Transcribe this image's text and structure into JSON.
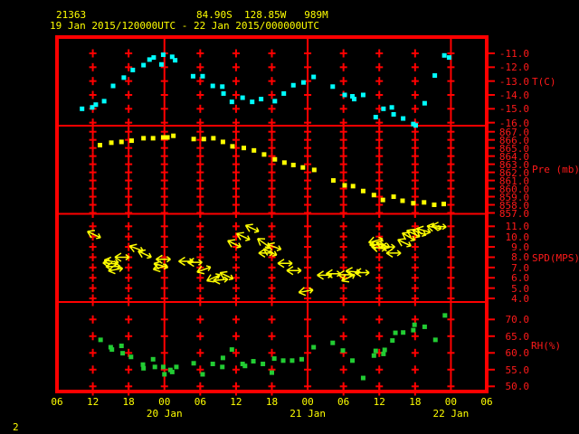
{
  "header": {
    "station_id": "21363",
    "coords_line": "84.90S  128.85W   989M",
    "time_range": "19 Jan 2015/120000UTC - 22 Jan 2015/000000UTC"
  },
  "footer": {
    "corner_label": "2"
  },
  "colors": {
    "background": "#000000",
    "grid": "#ff0000",
    "header_text": "#ffff00",
    "axis_label_text": "#ff1a1a",
    "time_axis_text": "#ffff00",
    "temperature": "#00ffff",
    "pressure": "#ffff00",
    "wind": "#ffff00",
    "humidity": "#22cc33"
  },
  "x_axis": {
    "tick_labels": [
      "06",
      "12",
      "18",
      "00",
      "06",
      "12",
      "18",
      "00",
      "06",
      "12",
      "18",
      "00",
      "06"
    ],
    "tick_hours": [
      0,
      6,
      12,
      18,
      24,
      30,
      36,
      42,
      48,
      54,
      60,
      66,
      72
    ],
    "day_labels": [
      {
        "label": "20 Jan",
        "hour": 18
      },
      {
        "label": "21 Jan",
        "hour": 42
      },
      {
        "label": "22 Jan",
        "hour": 66
      }
    ],
    "hours_span": 72
  },
  "chart_data": [
    {
      "type": "scatter",
      "name": "temperature",
      "ylabel": "T(C)",
      "yticks": [
        "-11.0",
        "-12.0",
        "-13.0",
        "-14.0",
        "-15.0",
        "-16.0"
      ],
      "ylim": [
        -16.2,
        -10.8
      ],
      "points": [
        [
          4.2,
          -15.0
        ],
        [
          5.9,
          -14.9
        ],
        [
          6.5,
          -14.7
        ],
        [
          7.9,
          -14.45
        ],
        [
          9.4,
          -13.35
        ],
        [
          11.2,
          -12.75
        ],
        [
          12.7,
          -12.2
        ],
        [
          14.5,
          -11.85
        ],
        [
          15.5,
          -11.45
        ],
        [
          16.2,
          -11.3
        ],
        [
          17.5,
          -11.8
        ],
        [
          17.8,
          -11.1
        ],
        [
          19.3,
          -11.25
        ],
        [
          19.8,
          -11.5
        ],
        [
          22.8,
          -12.65
        ],
        [
          24.4,
          -12.65
        ],
        [
          26.1,
          -13.35
        ],
        [
          27.7,
          -13.4
        ],
        [
          27.9,
          -13.9
        ],
        [
          29.3,
          -14.5
        ],
        [
          31.1,
          -14.2
        ],
        [
          32.7,
          -14.5
        ],
        [
          34.2,
          -14.3
        ],
        [
          36.5,
          -14.45
        ],
        [
          38.0,
          -13.9
        ],
        [
          39.6,
          -13.3
        ],
        [
          41.3,
          -13.1
        ],
        [
          43.0,
          -12.7
        ],
        [
          46.2,
          -13.4
        ],
        [
          48.2,
          -14.0
        ],
        [
          49.5,
          -14.1
        ],
        [
          49.8,
          -14.3
        ],
        [
          51.3,
          -14.0
        ],
        [
          53.4,
          -15.6
        ],
        [
          54.7,
          -15.0
        ],
        [
          56.1,
          -14.9
        ],
        [
          56.4,
          -15.4
        ],
        [
          58.0,
          -15.7
        ],
        [
          59.7,
          -16.1
        ],
        [
          60.1,
          -16.2
        ],
        [
          61.6,
          -14.6
        ],
        [
          63.3,
          -12.6
        ],
        [
          64.9,
          -11.15
        ],
        [
          65.7,
          -11.3
        ]
      ]
    },
    {
      "type": "scatter",
      "name": "pressure",
      "ylabel": "Pre (mb)",
      "yticks": [
        "867.0",
        "866.0",
        "865.0",
        "864.0",
        "863.0",
        "862.0",
        "861.0",
        "860.0",
        "859.0",
        "858.0",
        "857.0"
      ],
      "ylim": [
        856.8,
        867.4
      ],
      "points": [
        [
          7.2,
          865.35
        ],
        [
          9.1,
          865.65
        ],
        [
          10.8,
          865.75
        ],
        [
          12.5,
          865.9
        ],
        [
          14.5,
          866.2
        ],
        [
          16.1,
          866.2
        ],
        [
          17.8,
          866.3
        ],
        [
          18.5,
          866.3
        ],
        [
          19.5,
          866.5
        ],
        [
          22.9,
          866.1
        ],
        [
          24.6,
          866.1
        ],
        [
          26.2,
          866.2
        ],
        [
          27.8,
          865.75
        ],
        [
          29.4,
          865.2
        ],
        [
          31.3,
          865.0
        ],
        [
          33.0,
          864.7
        ],
        [
          34.7,
          864.2
        ],
        [
          36.5,
          863.6
        ],
        [
          38.1,
          863.2
        ],
        [
          39.6,
          862.9
        ],
        [
          41.2,
          862.6
        ],
        [
          43.1,
          862.3
        ],
        [
          46.3,
          861.0
        ],
        [
          48.2,
          860.4
        ],
        [
          49.6,
          860.3
        ],
        [
          51.3,
          859.7
        ],
        [
          53.1,
          859.2
        ],
        [
          54.6,
          858.6
        ],
        [
          56.4,
          859.0
        ],
        [
          57.9,
          858.5
        ],
        [
          59.7,
          858.2
        ],
        [
          61.5,
          858.3
        ],
        [
          63.2,
          858.0
        ],
        [
          64.8,
          858.1
        ]
      ]
    },
    {
      "type": "vector",
      "name": "wind_speed",
      "ylabel": "SPD(MPS)",
      "yticks": [
        "11.0",
        "10.0",
        "9.0",
        "8.0",
        "7.0",
        "6.0",
        "5.0",
        "4.0"
      ],
      "ylim": [
        3.8,
        12.0
      ],
      "points_format": [
        "hour",
        "speed_mps",
        "arrow_rotation_deg"
      ],
      "points": [
        [
          6.2,
          10.2,
          205
        ],
        [
          8.9,
          7.4,
          185
        ],
        [
          9.1,
          7.6,
          190
        ],
        [
          9.4,
          7.1,
          180
        ],
        [
          9.8,
          6.8,
          170
        ],
        [
          10.9,
          8.0,
          180
        ],
        [
          13.3,
          8.85,
          200
        ],
        [
          14.7,
          8.3,
          205
        ],
        [
          17.3,
          7.0,
          165
        ],
        [
          17.4,
          7.2,
          195
        ],
        [
          17.8,
          7.8,
          180
        ],
        [
          21.6,
          7.6,
          180
        ],
        [
          23.1,
          7.5,
          180
        ],
        [
          24.6,
          6.8,
          160
        ],
        [
          26.2,
          6.0,
          155
        ],
        [
          27.4,
          5.8,
          175
        ],
        [
          28.4,
          6.2,
          205
        ],
        [
          29.7,
          9.3,
          205
        ],
        [
          31.2,
          10.0,
          205
        ],
        [
          32.7,
          10.8,
          205
        ],
        [
          34.6,
          9.4,
          215
        ],
        [
          35.0,
          8.4,
          180
        ],
        [
          35.7,
          8.5,
          205
        ],
        [
          36.4,
          9.0,
          200
        ],
        [
          38.2,
          7.4,
          180
        ],
        [
          39.7,
          6.7,
          180
        ],
        [
          41.7,
          4.7,
          170
        ],
        [
          44.8,
          6.25,
          180
        ],
        [
          46.3,
          6.4,
          180
        ],
        [
          48.3,
          6.3,
          180
        ],
        [
          48.8,
          6.0,
          155
        ],
        [
          49.6,
          6.6,
          185
        ],
        [
          51.1,
          6.5,
          180
        ],
        [
          53.4,
          9.6,
          165
        ],
        [
          53.6,
          9.2,
          180
        ],
        [
          53.9,
          8.9,
          190
        ],
        [
          54.6,
          9.2,
          200
        ],
        [
          55.4,
          9.0,
          180
        ],
        [
          56.4,
          8.4,
          180
        ],
        [
          58.2,
          9.4,
          205
        ],
        [
          58.9,
          10.0,
          210
        ],
        [
          59.7,
          10.3,
          205
        ],
        [
          60.7,
          10.4,
          200
        ],
        [
          61.4,
          10.6,
          195
        ],
        [
          63.2,
          10.9,
          190
        ],
        [
          64.0,
          11.0,
          185
        ]
      ]
    },
    {
      "type": "scatter",
      "name": "relative_humidity",
      "ylabel": "RH(%)",
      "yticks": [
        "70.0",
        "65.0",
        "60.0",
        "55.0",
        "50.0"
      ],
      "ylim": [
        48.0,
        75.0
      ],
      "points": [
        [
          7.3,
          63.9
        ],
        [
          9.0,
          61.7
        ],
        [
          9.2,
          61.0
        ],
        [
          10.8,
          62.1
        ],
        [
          11.0,
          59.9
        ],
        [
          12.4,
          58.8
        ],
        [
          14.4,
          56.5
        ],
        [
          14.5,
          55.4
        ],
        [
          16.1,
          58.1
        ],
        [
          16.4,
          55.8
        ],
        [
          17.8,
          55.8
        ],
        [
          18.0,
          53.6
        ],
        [
          19.0,
          54.9
        ],
        [
          19.3,
          54.3
        ],
        [
          20.0,
          55.8
        ],
        [
          22.9,
          56.9
        ],
        [
          24.4,
          53.6
        ],
        [
          26.1,
          56.7
        ],
        [
          27.7,
          55.8
        ],
        [
          27.8,
          58.5
        ],
        [
          29.3,
          61.0
        ],
        [
          31.1,
          56.7
        ],
        [
          31.5,
          56.1
        ],
        [
          32.9,
          57.5
        ],
        [
          34.5,
          56.7
        ],
        [
          36.0,
          54.1
        ],
        [
          36.4,
          58.3
        ],
        [
          37.9,
          57.7
        ],
        [
          39.4,
          57.7
        ],
        [
          41.0,
          58.1
        ],
        [
          43.0,
          61.7
        ],
        [
          46.2,
          63.0
        ],
        [
          47.9,
          60.7
        ],
        [
          49.5,
          57.7
        ],
        [
          51.3,
          52.5
        ],
        [
          53.1,
          59.2
        ],
        [
          53.4,
          60.6
        ],
        [
          54.7,
          59.7
        ],
        [
          54.9,
          60.9
        ],
        [
          56.2,
          63.7
        ],
        [
          56.7,
          66.0
        ],
        [
          58.0,
          66.1
        ],
        [
          59.7,
          66.8
        ],
        [
          59.9,
          68.4
        ],
        [
          61.6,
          67.8
        ],
        [
          63.4,
          63.9
        ],
        [
          65.0,
          71.2
        ]
      ]
    }
  ]
}
